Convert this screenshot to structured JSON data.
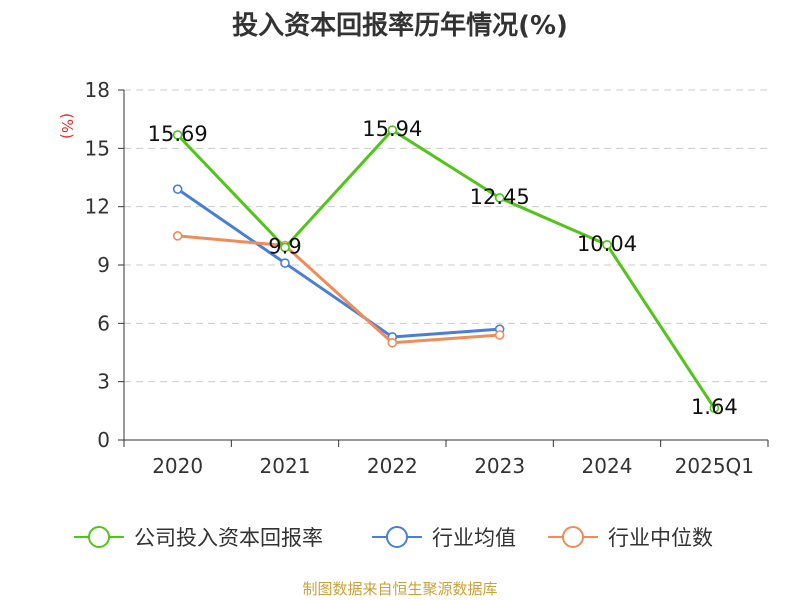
{
  "chart_data": {
    "type": "line",
    "title": "投入资本回报率历年情况(%)",
    "ylabel": "(%)",
    "xlabel": "",
    "categories": [
      "2020",
      "2021",
      "2022",
      "2023",
      "2024",
      "2025Q1"
    ],
    "ylim": [
      0,
      18
    ],
    "yticks": [
      0,
      3,
      6,
      9,
      12,
      15,
      18
    ],
    "grid": true,
    "legend_position": "bottom",
    "series": [
      {
        "name": "公司投入资本回报率",
        "color": "#52c41a",
        "values": [
          15.69,
          9.9,
          15.94,
          12.45,
          10.04,
          1.64
        ],
        "labels": [
          "15.69",
          "9.9",
          "15.94",
          "12.45",
          "10.04",
          "1.64"
        ]
      },
      {
        "name": "行业均值",
        "color": "#4a7fd8",
        "values": [
          12.9,
          9.1,
          5.3,
          5.7,
          null,
          null
        ]
      },
      {
        "name": "行业中位数",
        "color": "#f08c5a",
        "values": [
          10.5,
          10.0,
          5.0,
          5.4,
          null,
          null
        ]
      }
    ],
    "source": "制图数据来自恒生聚源数据库"
  }
}
